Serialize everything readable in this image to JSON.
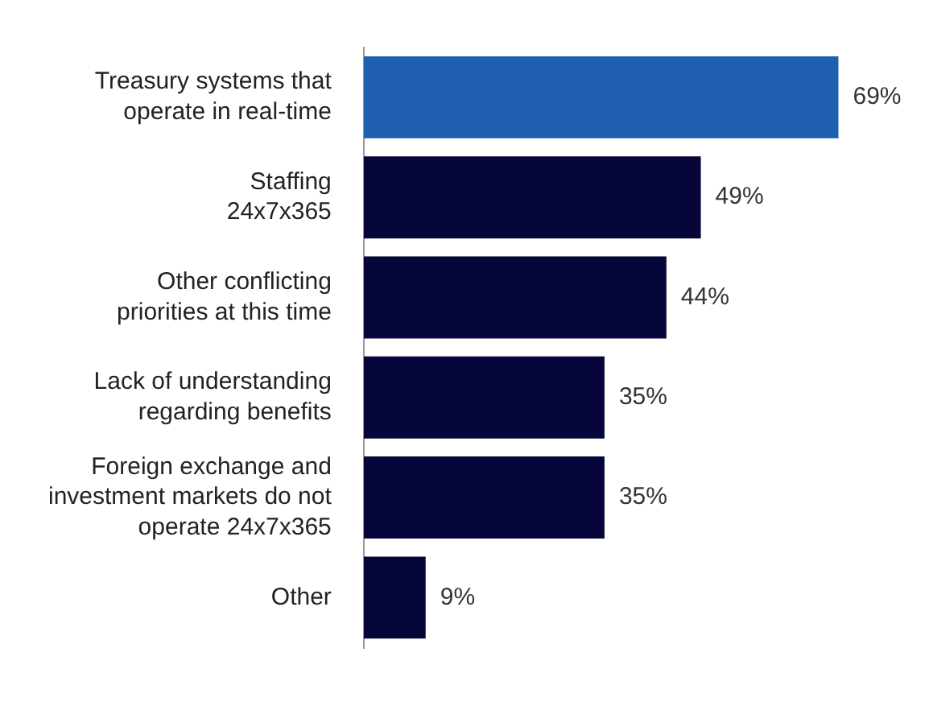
{
  "chart_data": {
    "type": "bar",
    "orientation": "horizontal",
    "categories": [
      "Treasury systems that\noperate in real-time",
      "Staffing\n24x7x365",
      "Other conflicting\npriorities at this time",
      "Lack of understanding\nregarding benefits",
      "Foreign exchange and\ninvestment markets do not\noperate 24x7x365",
      "Other"
    ],
    "values": [
      69,
      49,
      44,
      35,
      35,
      9
    ],
    "colors": [
      "#1f5fb0",
      "#06063a",
      "#06063a",
      "#06063a",
      "#06063a",
      "#06063a"
    ],
    "value_labels": [
      "69%",
      "49%",
      "44%",
      "35%",
      "35%",
      "9%"
    ],
    "legend": false,
    "tick_labels": "y"
  }
}
